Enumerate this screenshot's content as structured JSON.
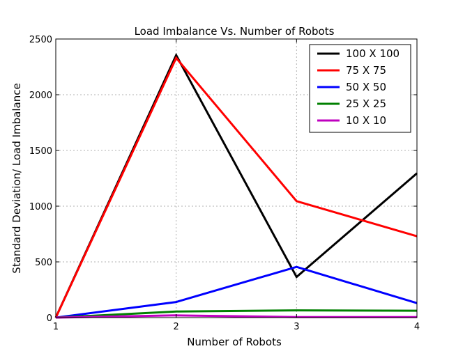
{
  "chart_data": {
    "type": "line",
    "title": "Load Imbalance Vs. Number of Robots",
    "xlabel": "Number of Robots",
    "ylabel": "Standard Deviation/ Load Imbalance",
    "xlim": [
      1,
      4
    ],
    "ylim": [
      0,
      2500
    ],
    "xticks": [
      1,
      2,
      3,
      4
    ],
    "yticks": [
      0,
      500,
      1000,
      1500,
      2000,
      2500
    ],
    "grid": true,
    "legend_position": "top-right",
    "x": [
      1,
      2,
      3,
      4
    ],
    "series": [
      {
        "name": "100 X 100",
        "color": "#000000",
        "values": [
          0,
          2355,
          365,
          1295
        ]
      },
      {
        "name": "75 X 75",
        "color": "#ff0000",
        "values": [
          0,
          2330,
          1045,
          730
        ]
      },
      {
        "name": "50 X 50",
        "color": "#0000ff",
        "values": [
          0,
          140,
          455,
          130
        ]
      },
      {
        "name": "25 X 25",
        "color": "#008000",
        "values": [
          0,
          55,
          65,
          62
        ]
      },
      {
        "name": "10 X 10",
        "color": "#bf00bf",
        "values": [
          0,
          20,
          5,
          5
        ]
      }
    ]
  }
}
